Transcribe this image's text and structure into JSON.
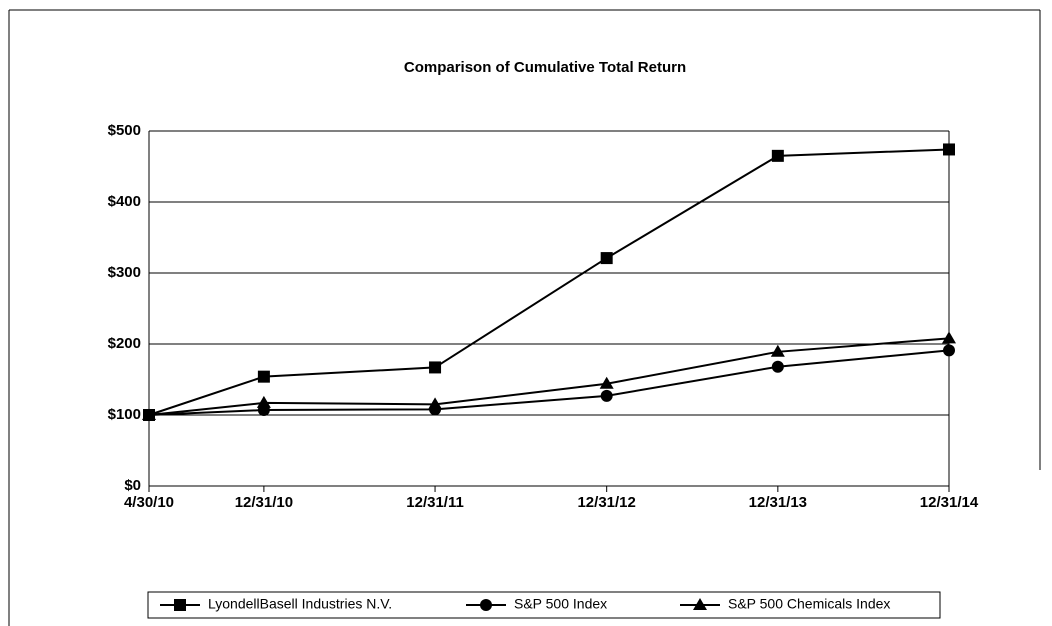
{
  "chart_data": {
    "type": "line",
    "title": "Comparison of Cumulative Total Return",
    "x": [
      "4/30/10",
      "12/31/10",
      "12/31/11",
      "12/31/12",
      "12/31/13",
      "12/31/14"
    ],
    "series": [
      {
        "name": "LyondellBasell Industries N.V.",
        "color": "#000000",
        "marker": "square",
        "values": [
          100,
          154,
          167,
          321,
          465,
          474
        ]
      },
      {
        "name": "S&P 500 Index",
        "color": "#000000",
        "marker": "circle",
        "values": [
          100,
          107,
          108,
          127,
          168,
          191
        ]
      },
      {
        "name": "S&P 500 Chemicals Index",
        "color": "#000000",
        "marker": "triangle",
        "values": [
          100,
          117,
          115,
          144,
          189,
          208
        ]
      }
    ],
    "ylim": [
      0,
      500
    ],
    "yticks": [
      {
        "value": 0,
        "label": "$0"
      },
      {
        "value": 100,
        "label": "$100"
      },
      {
        "value": 200,
        "label": "$200"
      },
      {
        "value": 300,
        "label": "$300"
      },
      {
        "value": 400,
        "label": "$400"
      },
      {
        "value": 500,
        "label": "$500"
      }
    ],
    "grid": true,
    "legend": "bottom"
  }
}
